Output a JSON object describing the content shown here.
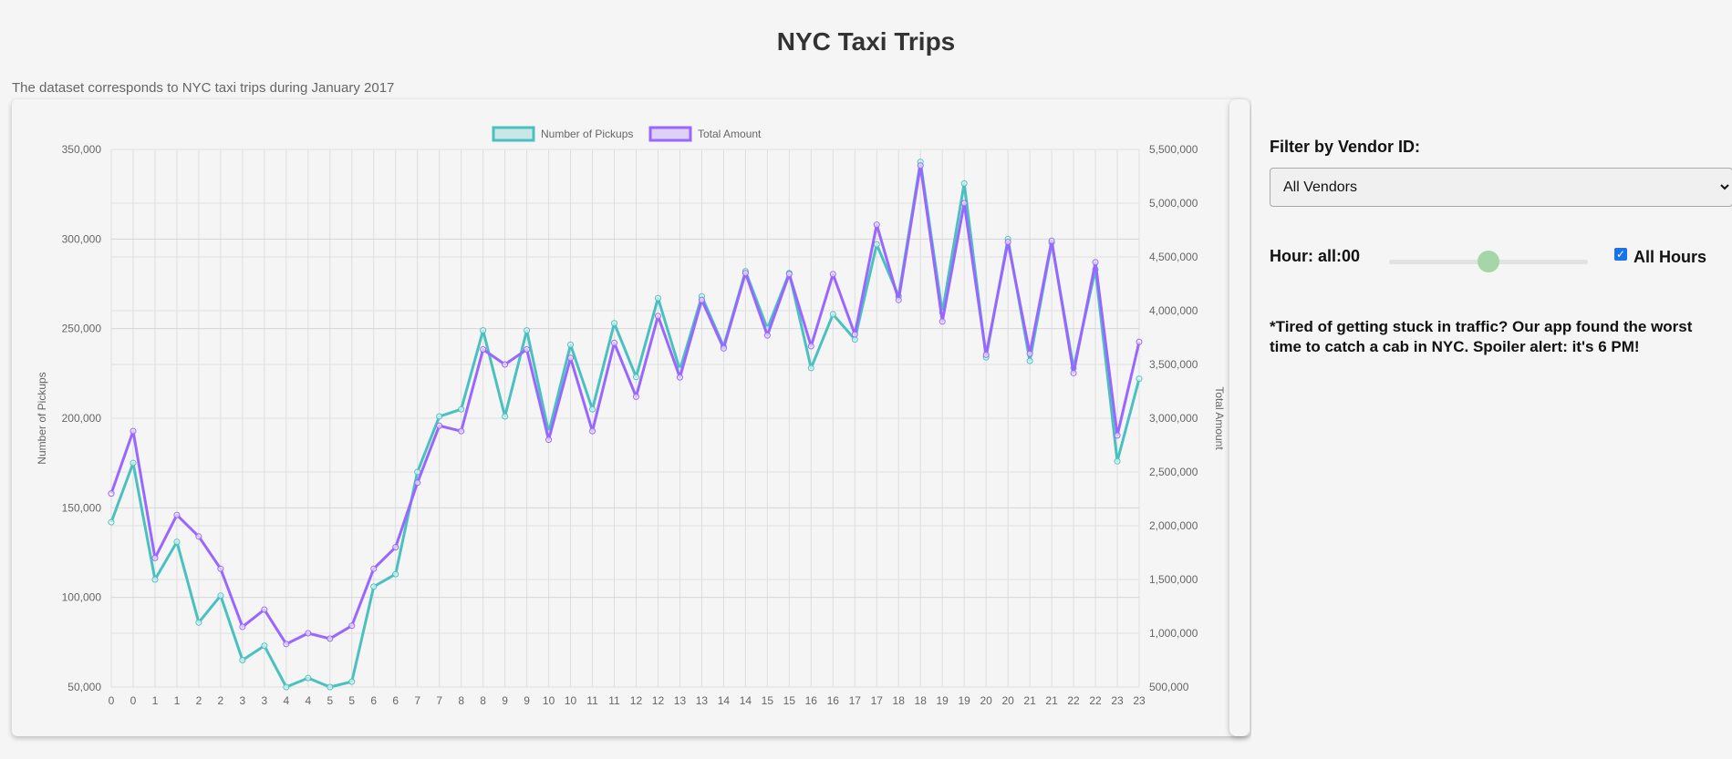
{
  "header": {
    "title": "NYC Taxi Trips",
    "subtitle": "The dataset corresponds to NYC taxi trips during January 2017"
  },
  "sidebar": {
    "filter_label": "Filter by Vendor ID:",
    "vendor_select": {
      "selected": "All Vendors",
      "options": [
        "All Vendors"
      ]
    },
    "hour_label": "Hour: all:00",
    "slider_fraction": 0.5,
    "all_hours_label": "All Hours",
    "all_hours_checked": true,
    "note": "*Tired of getting stuck in traffic? Our app found the worst time to catch a cab in NYC. Spoiler alert: it's 6 PM!"
  },
  "chart_data": {
    "type": "line",
    "categories": [
      "0",
      "0",
      "1",
      "1",
      "2",
      "2",
      "3",
      "3",
      "4",
      "4",
      "5",
      "5",
      "6",
      "6",
      "7",
      "7",
      "8",
      "8",
      "9",
      "9",
      "10",
      "10",
      "11",
      "11",
      "12",
      "12",
      "13",
      "13",
      "14",
      "14",
      "15",
      "15",
      "16",
      "16",
      "17",
      "17",
      "18",
      "18",
      "19",
      "19",
      "20",
      "20",
      "21",
      "21",
      "22",
      "22",
      "23",
      "23"
    ],
    "ylabel": "Number of Pickups",
    "y2label": "Total Amount",
    "ylim": [
      50000,
      350000
    ],
    "y2lim": [
      500000,
      5500000
    ],
    "yticks": [
      "50,000",
      "100,000",
      "150,000",
      "200,000",
      "250,000",
      "300,000",
      "350,000"
    ],
    "y2ticks": [
      "500,000",
      "1,000,000",
      "1,500,000",
      "2,000,000",
      "2,500,000",
      "3,000,000",
      "3,500,000",
      "4,000,000",
      "4,500,000",
      "5,000,000",
      "5,500,000"
    ],
    "legend": "top",
    "grid": true,
    "series": [
      {
        "name": "Number of Pickups",
        "axis": "left",
        "color": "#4bc0c0",
        "values": [
          142000,
          175000,
          110000,
          131000,
          86000,
          101000,
          65000,
          73000,
          50000,
          55000,
          50000,
          53000,
          106000,
          113000,
          170000,
          201000,
          205000,
          249000,
          201000,
          249000,
          192000,
          241000,
          205000,
          253000,
          223000,
          267000,
          227000,
          268000,
          240000,
          282000,
          250000,
          281000,
          228000,
          258000,
          244000,
          297000,
          268000,
          343000,
          259000,
          331000,
          234000,
          300000,
          232000,
          298000,
          228000,
          283000,
          176000,
          222000
        ]
      },
      {
        "name": "Total Amount",
        "axis": "right",
        "color": "#9966ff",
        "values": [
          2300000,
          2880000,
          1700000,
          2100000,
          1900000,
          1600000,
          1060000,
          1220000,
          900000,
          1000000,
          950000,
          1070000,
          1600000,
          1800000,
          2400000,
          2930000,
          2880000,
          3640000,
          3500000,
          3640000,
          2800000,
          3560000,
          2880000,
          3700000,
          3200000,
          3950000,
          3380000,
          4100000,
          3650000,
          4350000,
          3770000,
          4340000,
          3670000,
          4340000,
          3780000,
          4800000,
          4100000,
          5350000,
          3900000,
          5000000,
          3590000,
          4640000,
          3600000,
          4650000,
          3420000,
          4450000,
          2840000,
          3710000
        ]
      }
    ]
  }
}
